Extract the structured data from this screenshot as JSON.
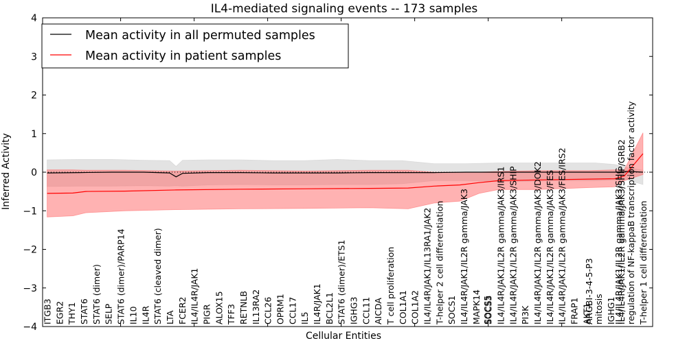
{
  "chart_data": {
    "type": "line",
    "title": "IL4-mediated signaling events -- 173 samples",
    "xlabel": "Cellular Entities",
    "ylabel": "Inferred Activity",
    "ylim": [
      -4,
      4
    ],
    "yticks": [
      -4,
      -3,
      -2,
      -1,
      0,
      1,
      2,
      3,
      4
    ],
    "ytick_labels": [
      "−4",
      "−3",
      "−2",
      "−1",
      "0",
      "1",
      "2",
      "3",
      "4"
    ],
    "legend": {
      "placement": "top-left",
      "entries": [
        {
          "label": "Mean activity in all permuted samples",
          "color": "#000000"
        },
        {
          "label": "Mean activity in patient samples",
          "color": "#ff0000"
        }
      ]
    },
    "colors": {
      "permuted_line": "#000000",
      "patient_line": "#ff0000",
      "permuted_band": "#cccccc",
      "patient_band": "#ff6666",
      "zero_line": "#000000"
    },
    "x": [
      "ITGB3",
      "EGR2",
      "THY1",
      "STAT6",
      "STAT6 (dimer)",
      "SELP",
      "STAT6 (dimer)/PARP14",
      "IL10",
      "IL4R",
      "STAT6 (cleaved dimer)",
      "LTA",
      "FCER2",
      "IL4/IL4R/JAK1",
      "PIGR",
      "ALOX15",
      "TFF3",
      "RETNLB",
      "IL13RA2",
      "CCL26",
      "OPRM1",
      "CCL17",
      "IL5",
      "IL4R/JAK1",
      "BCL2L1",
      "STAT6 (dimer)/ETS1",
      "IGHG3",
      "CCL11",
      "AICDA",
      "T cell proliferation",
      "COL1A1",
      "COL1A2",
      "IL4/IL4R/JAK1/IL13RA1/JAK2",
      "T-helper 2 cell differentiation",
      "SOCS1",
      "IL4/IL4R/JAK1/IL2R gamma/JAK3",
      "MAPK14",
      "SOCS5",
      "SOCS3",
      "IL4/IL4R/JAK1/IL2R gamma/JAK3/IRS1",
      "IL4/IL4R/JAK1/IL2R gamma/JAK3/SHIP",
      "PI3K",
      "IL4/IL4R/JAK1/IL2R gamma/JAK3/DOK2",
      "IL4/IL4R/JAK1/IL2R gamma/JAK3/FES",
      "IL4/IL4R/JAK1/IL2R gamma/JAK3/FES/IRS2",
      "FRAP1",
      "AKT1",
      "ARGBI-3-4-5-P3",
      "mitosis",
      "IGHG1",
      "IL4/IL4R/JAK1/IL2R gamma/JAK3/SHC",
      "IL4/IL4R/JAK1/IL2R gamma/JAK3/SHIP/GRB2",
      "regulation of NF-kappaB transcription factor activity",
      "T-helper 1 cell differentiation"
    ],
    "label_x_positions": [
      0,
      1.9,
      3.8,
      5.7,
      7.6,
      9.5,
      11.4,
      13.3,
      15.2,
      17.1,
      19.0,
      20.9,
      22.8,
      24.7,
      26.6,
      28.5,
      30.4,
      32.3,
      34.2,
      36.1,
      38.0,
      39.9,
      41.8,
      43.7,
      45.6,
      47.5,
      49.4,
      51.3,
      53.2,
      55.1,
      57.0,
      58.9,
      60.8,
      62.7,
      64.6,
      66.5,
      68.2,
      68.4,
      70.3,
      72.2,
      74.1,
      76.0,
      77.9,
      79.8,
      81.7,
      83.6,
      84.0,
      85.5,
      87.4,
      88.6,
      89.0,
      90.5,
      92.4
    ],
    "series": [
      {
        "name": "Mean activity in all permuted samples",
        "x": [
          0,
          5,
          10,
          15,
          19,
          20,
          21,
          25,
          30,
          35,
          40,
          45,
          50,
          55,
          60,
          65,
          70,
          75,
          80,
          85,
          88,
          90,
          92.4
        ],
        "values": [
          -0.02,
          -0.01,
          0,
          0,
          -0.02,
          -0.12,
          -0.03,
          -0.01,
          -0.01,
          -0.02,
          -0.02,
          -0.02,
          -0.01,
          -0.01,
          -0.01,
          0,
          0,
          0,
          0,
          0,
          0,
          0.02,
          0
        ],
        "band_upper": [
          0.32,
          0.33,
          0.33,
          0.31,
          0.3,
          0.15,
          0.31,
          0.32,
          0.32,
          0.3,
          0.3,
          0.33,
          0.3,
          0.3,
          0.22,
          0.22,
          0.24,
          0.24,
          0.24,
          0.24,
          0.2,
          0.12,
          0.05
        ],
        "band_lower": [
          -0.37,
          -0.36,
          -0.36,
          -0.35,
          -0.36,
          -0.35,
          -0.36,
          -0.33,
          -0.32,
          -0.33,
          -0.33,
          -0.32,
          -0.32,
          -0.3,
          -0.22,
          -0.22,
          -0.24,
          -0.24,
          -0.22,
          -0.22,
          -0.2,
          -0.2,
          -0.32
        ]
      },
      {
        "name": "Mean activity in patient samples",
        "x": [
          0,
          4,
          6,
          12,
          20,
          30,
          40,
          50,
          56,
          60,
          64,
          67,
          70,
          76,
          84,
          88,
          89.5,
          92.4
        ],
        "values": [
          -0.55,
          -0.54,
          -0.5,
          -0.49,
          -0.46,
          -0.44,
          -0.43,
          -0.42,
          -0.41,
          -0.36,
          -0.33,
          -0.27,
          -0.22,
          -0.2,
          -0.18,
          -0.17,
          -0.1,
          0.48
        ],
        "band_upper": [
          0.06,
          0.06,
          0.05,
          0.05,
          0.03,
          0.05,
          0.03,
          0.05,
          0.05,
          0.0,
          0.0,
          0.0,
          0.02,
          0.04,
          0.04,
          0.06,
          0.06,
          1.02
        ],
        "band_lower": [
          -1.16,
          -1.13,
          -1.05,
          -1.0,
          -0.97,
          -0.95,
          -0.94,
          -0.92,
          -0.95,
          -0.8,
          -0.75,
          -0.55,
          -0.45,
          -0.45,
          -0.4,
          -0.38,
          -0.22,
          -0.06
        ]
      }
    ],
    "xlim": [
      -0.7,
      93.9
    ],
    "top_ticks": [
      11.4,
      22.8,
      34.2,
      45.6,
      57.0,
      68.4,
      79.8
    ],
    "grid": false
  }
}
